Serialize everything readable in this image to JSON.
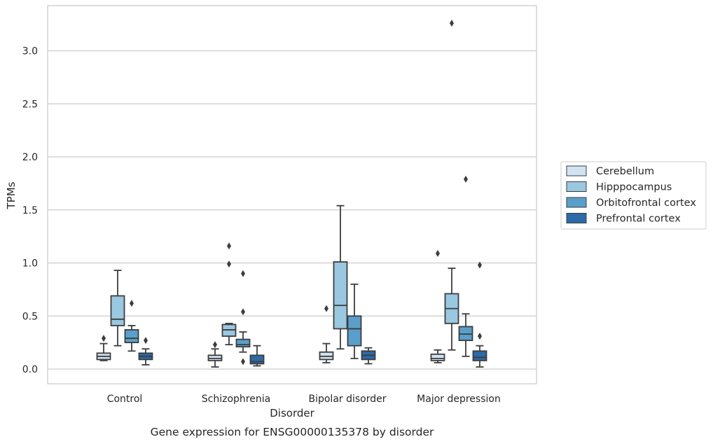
{
  "chart_data": {
    "type": "boxplot",
    "title": "",
    "caption": "Gene expression for ENSG00000135378 by disorder",
    "xlabel": "Disorder",
    "ylabel": "TPMs",
    "ylim": [
      -0.13,
      3.44
    ],
    "yticks": [
      "0.0",
      "0.5",
      "1.0",
      "1.5",
      "2.0",
      "2.5",
      "3.0"
    ],
    "ytick_values": [
      0,
      0.5,
      1.0,
      1.5,
      2.0,
      2.5,
      3.0
    ],
    "grid": "horizontal",
    "legend_placement": "right",
    "categories": [
      "Control",
      "Schizophrenia",
      "Bipolar disorder",
      "Major depression"
    ],
    "series": [
      {
        "name": "Cerebellum",
        "color": "#d2e3f3",
        "boxes": [
          {
            "whislo": 0.08,
            "q1": 0.09,
            "med": 0.12,
            "q3": 0.15,
            "whishi": 0.24,
            "fliers": [
              0.29
            ]
          },
          {
            "whislo": 0.02,
            "q1": 0.08,
            "med": 0.1,
            "q3": 0.13,
            "whishi": 0.19,
            "fliers": [
              0.23
            ]
          },
          {
            "whislo": 0.06,
            "q1": 0.09,
            "med": 0.12,
            "q3": 0.16,
            "whishi": 0.24,
            "fliers": [
              0.57
            ]
          },
          {
            "whislo": 0.06,
            "q1": 0.08,
            "med": 0.1,
            "q3": 0.14,
            "whishi": 0.18,
            "fliers": [
              1.09
            ]
          }
        ]
      },
      {
        "name": "Hipppocampus",
        "color": "#9ac8e0",
        "boxes": [
          {
            "whislo": 0.22,
            "q1": 0.41,
            "med": 0.47,
            "q3": 0.69,
            "whishi": 0.93,
            "fliers": []
          },
          {
            "whislo": 0.23,
            "q1": 0.31,
            "med": 0.37,
            "q3": 0.42,
            "whishi": 0.43,
            "fliers": [
              1.16,
              0.99
            ]
          },
          {
            "whislo": 0.19,
            "q1": 0.38,
            "med": 0.6,
            "q3": 1.01,
            "whishi": 1.54,
            "fliers": []
          },
          {
            "whislo": 0.18,
            "q1": 0.43,
            "med": 0.57,
            "q3": 0.71,
            "whishi": 0.95,
            "fliers": [
              3.26
            ]
          }
        ]
      },
      {
        "name": "Orbitofrontal cortex",
        "color": "#5a9fcb",
        "boxes": [
          {
            "whislo": 0.17,
            "q1": 0.25,
            "med": 0.29,
            "q3": 0.37,
            "whishi": 0.41,
            "fliers": [
              0.62
            ]
          },
          {
            "whislo": 0.16,
            "q1": 0.21,
            "med": 0.23,
            "q3": 0.28,
            "whishi": 0.35,
            "fliers": [
              0.9,
              0.54,
              0.07
            ]
          },
          {
            "whislo": 0.1,
            "q1": 0.22,
            "med": 0.38,
            "q3": 0.5,
            "whishi": 0.8,
            "fliers": []
          },
          {
            "whislo": 0.12,
            "q1": 0.27,
            "med": 0.33,
            "q3": 0.4,
            "whishi": 0.52,
            "fliers": [
              1.79
            ]
          }
        ]
      },
      {
        "name": "Prefrontal cortex",
        "color": "#2c6aa8",
        "boxes": [
          {
            "whislo": 0.04,
            "q1": 0.09,
            "med": 0.12,
            "q3": 0.15,
            "whishi": 0.19,
            "fliers": [
              0.27
            ]
          },
          {
            "whislo": 0.03,
            "q1": 0.05,
            "med": 0.07,
            "q3": 0.13,
            "whishi": 0.22,
            "fliers": []
          },
          {
            "whislo": 0.05,
            "q1": 0.09,
            "med": 0.13,
            "q3": 0.17,
            "whishi": 0.2,
            "fliers": []
          },
          {
            "whislo": 0.02,
            "q1": 0.08,
            "med": 0.11,
            "q3": 0.17,
            "whishi": 0.22,
            "fliers": [
              0.98,
              0.31
            ]
          }
        ]
      }
    ]
  }
}
